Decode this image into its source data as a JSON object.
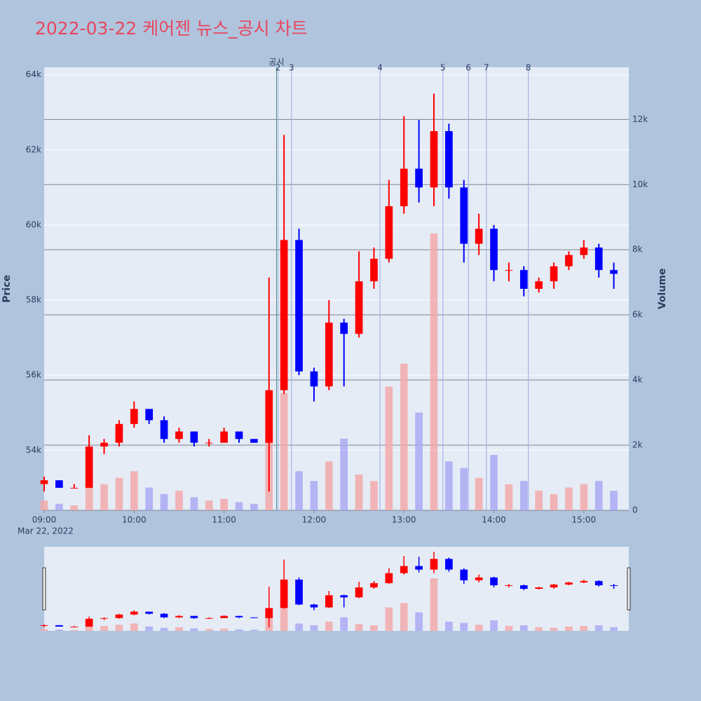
{
  "chart_data": {
    "type": "candlestick",
    "title": "2022-03-22 케어젠 뉴스_공시 차트",
    "y_label": "Price",
    "y2_label": "Volume",
    "x_date_label": "Mar 22, 2022",
    "increasing_color": "#ff0000",
    "decreasing_color": "#0000ff",
    "volume_increasing_color": "#f4a6a6",
    "volume_decreasing_color": "#a6a6f4",
    "x": [
      "09:00",
      "09:10",
      "09:20",
      "09:30",
      "09:40",
      "09:50",
      "10:00",
      "10:10",
      "10:20",
      "10:30",
      "10:40",
      "10:50",
      "11:00",
      "11:10",
      "11:20",
      "11:30",
      "11:40",
      "11:50",
      "12:00",
      "12:10",
      "12:20",
      "12:30",
      "12:40",
      "12:50",
      "13:00",
      "13:10",
      "13:20",
      "13:30",
      "13:40",
      "13:50",
      "14:00",
      "14:10",
      "14:20",
      "14:30",
      "14:40",
      "14:50",
      "15:00",
      "15:10",
      "15:20"
    ],
    "open": [
      53100,
      53200,
      53000,
      53000,
      54100,
      54200,
      54700,
      55100,
      54800,
      54300,
      54500,
      54200,
      54200,
      54500,
      54300,
      54200,
      55600,
      59600,
      56100,
      55700,
      57400,
      57100,
      58500,
      59100,
      60500,
      61500,
      61000,
      62500,
      61000,
      59500,
      59900,
      58800,
      58800,
      58300,
      58500,
      58900,
      59200,
      59400,
      58800
    ],
    "high": [
      53300,
      53200,
      53100,
      54400,
      54300,
      54800,
      55300,
      55100,
      54900,
      54600,
      54500,
      54300,
      54600,
      54500,
      54300,
      58600,
      62400,
      59900,
      56200,
      58000,
      57500,
      59300,
      59400,
      61200,
      62900,
      62800,
      63500,
      62700,
      61200,
      60300,
      60000,
      59000,
      58900,
      58600,
      59000,
      59300,
      59600,
      59500,
      59000
    ],
    "low": [
      52900,
      53000,
      53000,
      53000,
      53900,
      54100,
      54600,
      54700,
      54200,
      54200,
      54100,
      54100,
      54200,
      54200,
      54200,
      52900,
      55500,
      56000,
      55300,
      55600,
      55700,
      57000,
      58300,
      59000,
      60300,
      60600,
      60500,
      60700,
      59000,
      59200,
      58500,
      58500,
      58100,
      58200,
      58300,
      58800,
      59100,
      58600,
      58300
    ],
    "close": [
      53200,
      53000,
      53000,
      54100,
      54200,
      54700,
      55100,
      54800,
      54300,
      54500,
      54200,
      54200,
      54500,
      54300,
      54200,
      55600,
      59600,
      56100,
      55700,
      57400,
      57100,
      58500,
      59100,
      60500,
      61500,
      61000,
      62500,
      61000,
      59500,
      59900,
      58800,
      58800,
      58300,
      58500,
      58900,
      59200,
      59400,
      58800,
      58700
    ],
    "volume": [
      300,
      200,
      150,
      900,
      800,
      1000,
      1200,
      700,
      500,
      600,
      400,
      300,
      350,
      250,
      200,
      2500,
      3600,
      1200,
      900,
      1500,
      2200,
      1100,
      900,
      3800,
      4500,
      3000,
      8500,
      1500,
      1300,
      1000,
      1700,
      800,
      900,
      600,
      500,
      700,
      800,
      900,
      600
    ],
    "xlim": [
      "09:00",
      "15:30"
    ],
    "xticks": [
      "09:00",
      "10:00",
      "11:00",
      "12:00",
      "13:00",
      "14:00",
      "15:00"
    ],
    "ylim": [
      52400,
      64200
    ],
    "yticks": [
      {
        "value": 54000,
        "label": "54k"
      },
      {
        "value": 56000,
        "label": "56k"
      },
      {
        "value": 58000,
        "label": "58k"
      },
      {
        "value": 60000,
        "label": "60k"
      },
      {
        "value": 62000,
        "label": "62k"
      },
      {
        "value": 64000,
        "label": "64k"
      }
    ],
    "y2lim": [
      0,
      13600
    ],
    "y2ticks": [
      0,
      {
        "value": 2000,
        "label": "2k"
      },
      {
        "value": 4000,
        "label": "4k"
      },
      {
        "value": 6000,
        "label": "6k"
      },
      {
        "value": 8000,
        "label": "8k"
      },
      {
        "value": 10000,
        "label": "10k"
      },
      {
        "value": 12000,
        "label": "12k"
      }
    ],
    "events": [
      {
        "label": "공시",
        "x": "11:35"
      },
      {
        "label": "2",
        "x": "11:36"
      },
      {
        "label": "3",
        "x": "11:45"
      },
      {
        "label": "4",
        "x": "12:44"
      },
      {
        "label": "5",
        "x": "13:26"
      },
      {
        "label": "6",
        "x": "13:43"
      },
      {
        "label": "7",
        "x": "13:55"
      },
      {
        "label": "8",
        "x": "14:23"
      }
    ]
  }
}
